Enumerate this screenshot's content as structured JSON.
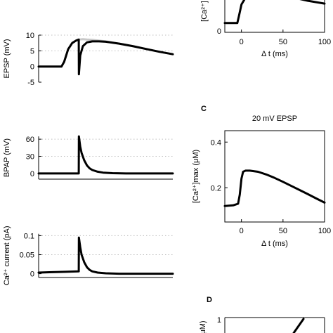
{
  "chart_data": [
    {
      "id": "epsp",
      "type": "line",
      "ylabel": "EPSP (mV)",
      "yticks": [
        -5,
        0,
        5,
        10
      ],
      "ylim": [
        -5,
        10
      ],
      "xlim": [
        0,
        100
      ],
      "grid": "dotted",
      "series": [
        {
          "x": [
            0,
            17,
            19,
            22,
            25,
            28,
            30,
            33,
            36,
            40,
            50,
            60,
            70,
            80,
            90,
            100
          ],
          "values": [
            0,
            0,
            1.5,
            5.5,
            7.5,
            8.3,
            8.6,
            8.7,
            8.6,
            8.5,
            8.0,
            7.3,
            6.5,
            5.6,
            4.7,
            3.9
          ]
        },
        {
          "x": [
            0,
            17,
            19,
            22,
            25,
            28,
            29.9,
            30,
            31,
            33,
            36,
            40,
            45,
            50,
            60,
            70,
            80,
            90,
            100
          ],
          "values": [
            0,
            0,
            1.5,
            5.5,
            7.5,
            8.3,
            8.6,
            -2.5,
            3.5,
            6.5,
            7.7,
            8.0,
            8.0,
            7.9,
            7.3,
            6.5,
            5.6,
            4.7,
            3.9
          ]
        }
      ]
    },
    {
      "id": "bpap",
      "type": "line",
      "ylabel": "BPAP (mV)",
      "yticks": [
        0,
        30,
        60
      ],
      "ylim": [
        -10,
        70
      ],
      "xlim": [
        0,
        100
      ],
      "grid": "dotted",
      "series": [
        {
          "x": [
            0,
            29.9,
            30,
            31,
            32,
            34,
            36,
            38,
            40,
            44,
            48,
            55,
            65,
            100
          ],
          "values": [
            0,
            0,
            65,
            47,
            36,
            23,
            14,
            9,
            6,
            3,
            1.5,
            0.5,
            0,
            0
          ]
        }
      ]
    },
    {
      "id": "ca-current",
      "type": "line",
      "ylabel": "Ca²⁺ current (pA)",
      "yticks": [
        0,
        0.05,
        0.1
      ],
      "ytick_labels": [
        "0",
        "0.05",
        "0.1"
      ],
      "ylim": [
        -0.01,
        0.11
      ],
      "xlim": [
        0,
        100
      ],
      "grid": "dotted",
      "series": [
        {
          "x": [
            0,
            10,
            20,
            29.9,
            30,
            31,
            32,
            34,
            36,
            38,
            40,
            44,
            50,
            60,
            100
          ],
          "values": [
            0.003,
            0.004,
            0.005,
            0.006,
            0.095,
            0.07,
            0.05,
            0.03,
            0.017,
            0.01,
            0.006,
            0.003,
            0.001,
            0,
            0
          ]
        }
      ]
    },
    {
      "id": "panel-b",
      "type": "line",
      "xlabel": "Δ t (ms)",
      "ylabel": "[Ca²⁺]",
      "xticks": [
        0,
        50,
        100
      ],
      "yticks": [
        0
      ],
      "xlim": [
        -20,
        100
      ],
      "series": [
        {
          "x": [
            -20,
            -5,
            -3,
            0,
            5,
            10,
            20,
            30,
            40,
            50,
            60,
            70,
            80,
            90,
            100
          ],
          "values": [
            0.2,
            0.2,
            0.35,
            0.6,
            0.75,
            0.85,
            0.9,
            0.88,
            0.84,
            0.8,
            0.76,
            0.72,
            0.68,
            0.65,
            0.62
          ]
        }
      ]
    },
    {
      "id": "panel-c",
      "type": "line",
      "panel_label": "C",
      "title": "20 mV EPSP",
      "xlabel": "Δ t (ms)",
      "ylabel": "[Ca²⁺]max (μM)",
      "xticks": [
        0,
        50,
        100
      ],
      "yticks": [
        0.2,
        0.4
      ],
      "ytick_labels": [
        "0.2",
        "0.4"
      ],
      "xlim": [
        -20,
        100
      ],
      "ylim": [
        0.05,
        0.45
      ],
      "series": [
        {
          "x": [
            -20,
            -10,
            -4,
            -2,
            0,
            2,
            5,
            10,
            20,
            30,
            40,
            50,
            60,
            70,
            80,
            90,
            100
          ],
          "values": [
            0.12,
            0.123,
            0.13,
            0.17,
            0.24,
            0.27,
            0.275,
            0.275,
            0.27,
            0.258,
            0.243,
            0.226,
            0.208,
            0.19,
            0.172,
            0.153,
            0.135
          ]
        }
      ]
    },
    {
      "id": "panel-d",
      "type": "line",
      "panel_label": "D",
      "ylabel": "μM)",
      "yticks": [
        1
      ],
      "ytick_labels": [
        "1"
      ],
      "series": []
    }
  ]
}
